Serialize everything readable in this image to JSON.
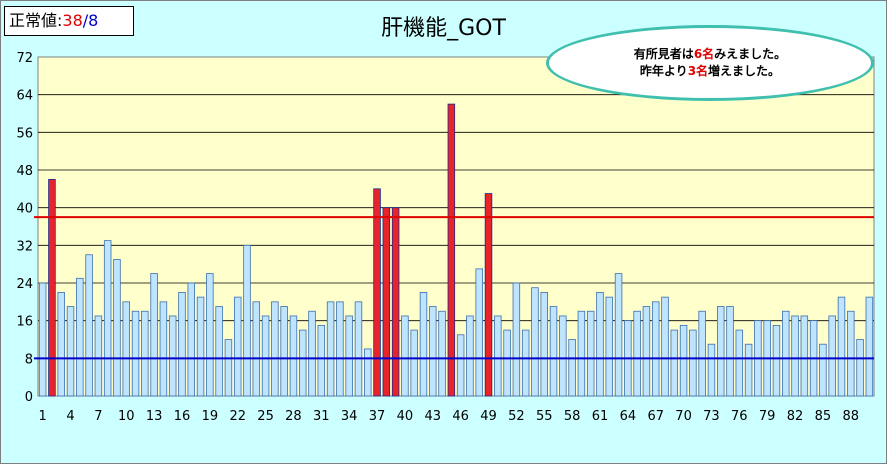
{
  "normal_value": {
    "label": "正常値:",
    "upper": "38",
    "separator": "/",
    "lower": "8"
  },
  "title": "肝機能_GOT",
  "callout": {
    "line1": {
      "pre": "有所見者は",
      "count": "6名",
      "post": "みえました。"
    },
    "line2": {
      "pre": "昨年より",
      "count": "3名",
      "post": "増えました。"
    }
  },
  "colors": {
    "background": "#ccffff",
    "plot": "#ffffcc",
    "normal_bar": "#bfe4ff",
    "flagged_bar": "#e8232a",
    "upper_line": "#e00000",
    "lower_line": "#0000cc",
    "bubble_border": "#3fbfae"
  },
  "chart_data": {
    "type": "bar",
    "title": "肝機能_GOT",
    "x": [
      1,
      2,
      3,
      4,
      5,
      6,
      7,
      8,
      9,
      10,
      11,
      12,
      13,
      14,
      15,
      16,
      17,
      18,
      19,
      20,
      21,
      22,
      23,
      24,
      25,
      26,
      27,
      28,
      29,
      30,
      31,
      32,
      33,
      34,
      35,
      36,
      37,
      38,
      39,
      40,
      41,
      42,
      43,
      44,
      45,
      46,
      47,
      48,
      49,
      50,
      51,
      52,
      53,
      54,
      55,
      56,
      57,
      58,
      59,
      60,
      61,
      62,
      63,
      64,
      65,
      66,
      67,
      68,
      69,
      70,
      71,
      72,
      73,
      74,
      75,
      76,
      77,
      78,
      79,
      80,
      81,
      82,
      83,
      84,
      85,
      86,
      87,
      88,
      89,
      90
    ],
    "values": [
      24,
      46,
      22,
      19,
      25,
      30,
      17,
      33,
      29,
      20,
      18,
      18,
      26,
      20,
      17,
      22,
      24,
      21,
      26,
      19,
      12,
      21,
      32,
      20,
      17,
      20,
      19,
      17,
      14,
      18,
      15,
      20,
      20,
      17,
      20,
      10,
      44,
      40,
      40,
      17,
      14,
      22,
      19,
      18,
      62,
      13,
      17,
      27,
      43,
      17,
      14,
      24,
      14,
      23,
      22,
      19,
      17,
      12,
      18,
      18,
      22,
      21,
      26,
      16,
      18,
      19,
      20,
      21,
      14,
      15,
      14,
      18,
      11,
      19,
      19,
      14,
      11,
      16,
      16,
      15,
      18,
      17,
      17,
      16,
      11,
      17,
      21,
      18,
      12,
      21
    ],
    "x_tick_labels": [
      "1",
      "4",
      "7",
      "10",
      "13",
      "16",
      "19",
      "22",
      "25",
      "28",
      "31",
      "34",
      "37",
      "40",
      "43",
      "46",
      "49",
      "52",
      "55",
      "58",
      "61",
      "64",
      "67",
      "70",
      "73",
      "76",
      "79",
      "82",
      "85",
      "88"
    ],
    "y_ticks": [
      "0",
      "8",
      "16",
      "24",
      "32",
      "40",
      "48",
      "56",
      "64",
      "72"
    ],
    "ylim": [
      0,
      72
    ],
    "reference_lines": [
      {
        "value": 38,
        "color": "#e00000"
      },
      {
        "value": 8,
        "color": "#0000cc"
      }
    ],
    "threshold_high": 38,
    "grid": true
  }
}
